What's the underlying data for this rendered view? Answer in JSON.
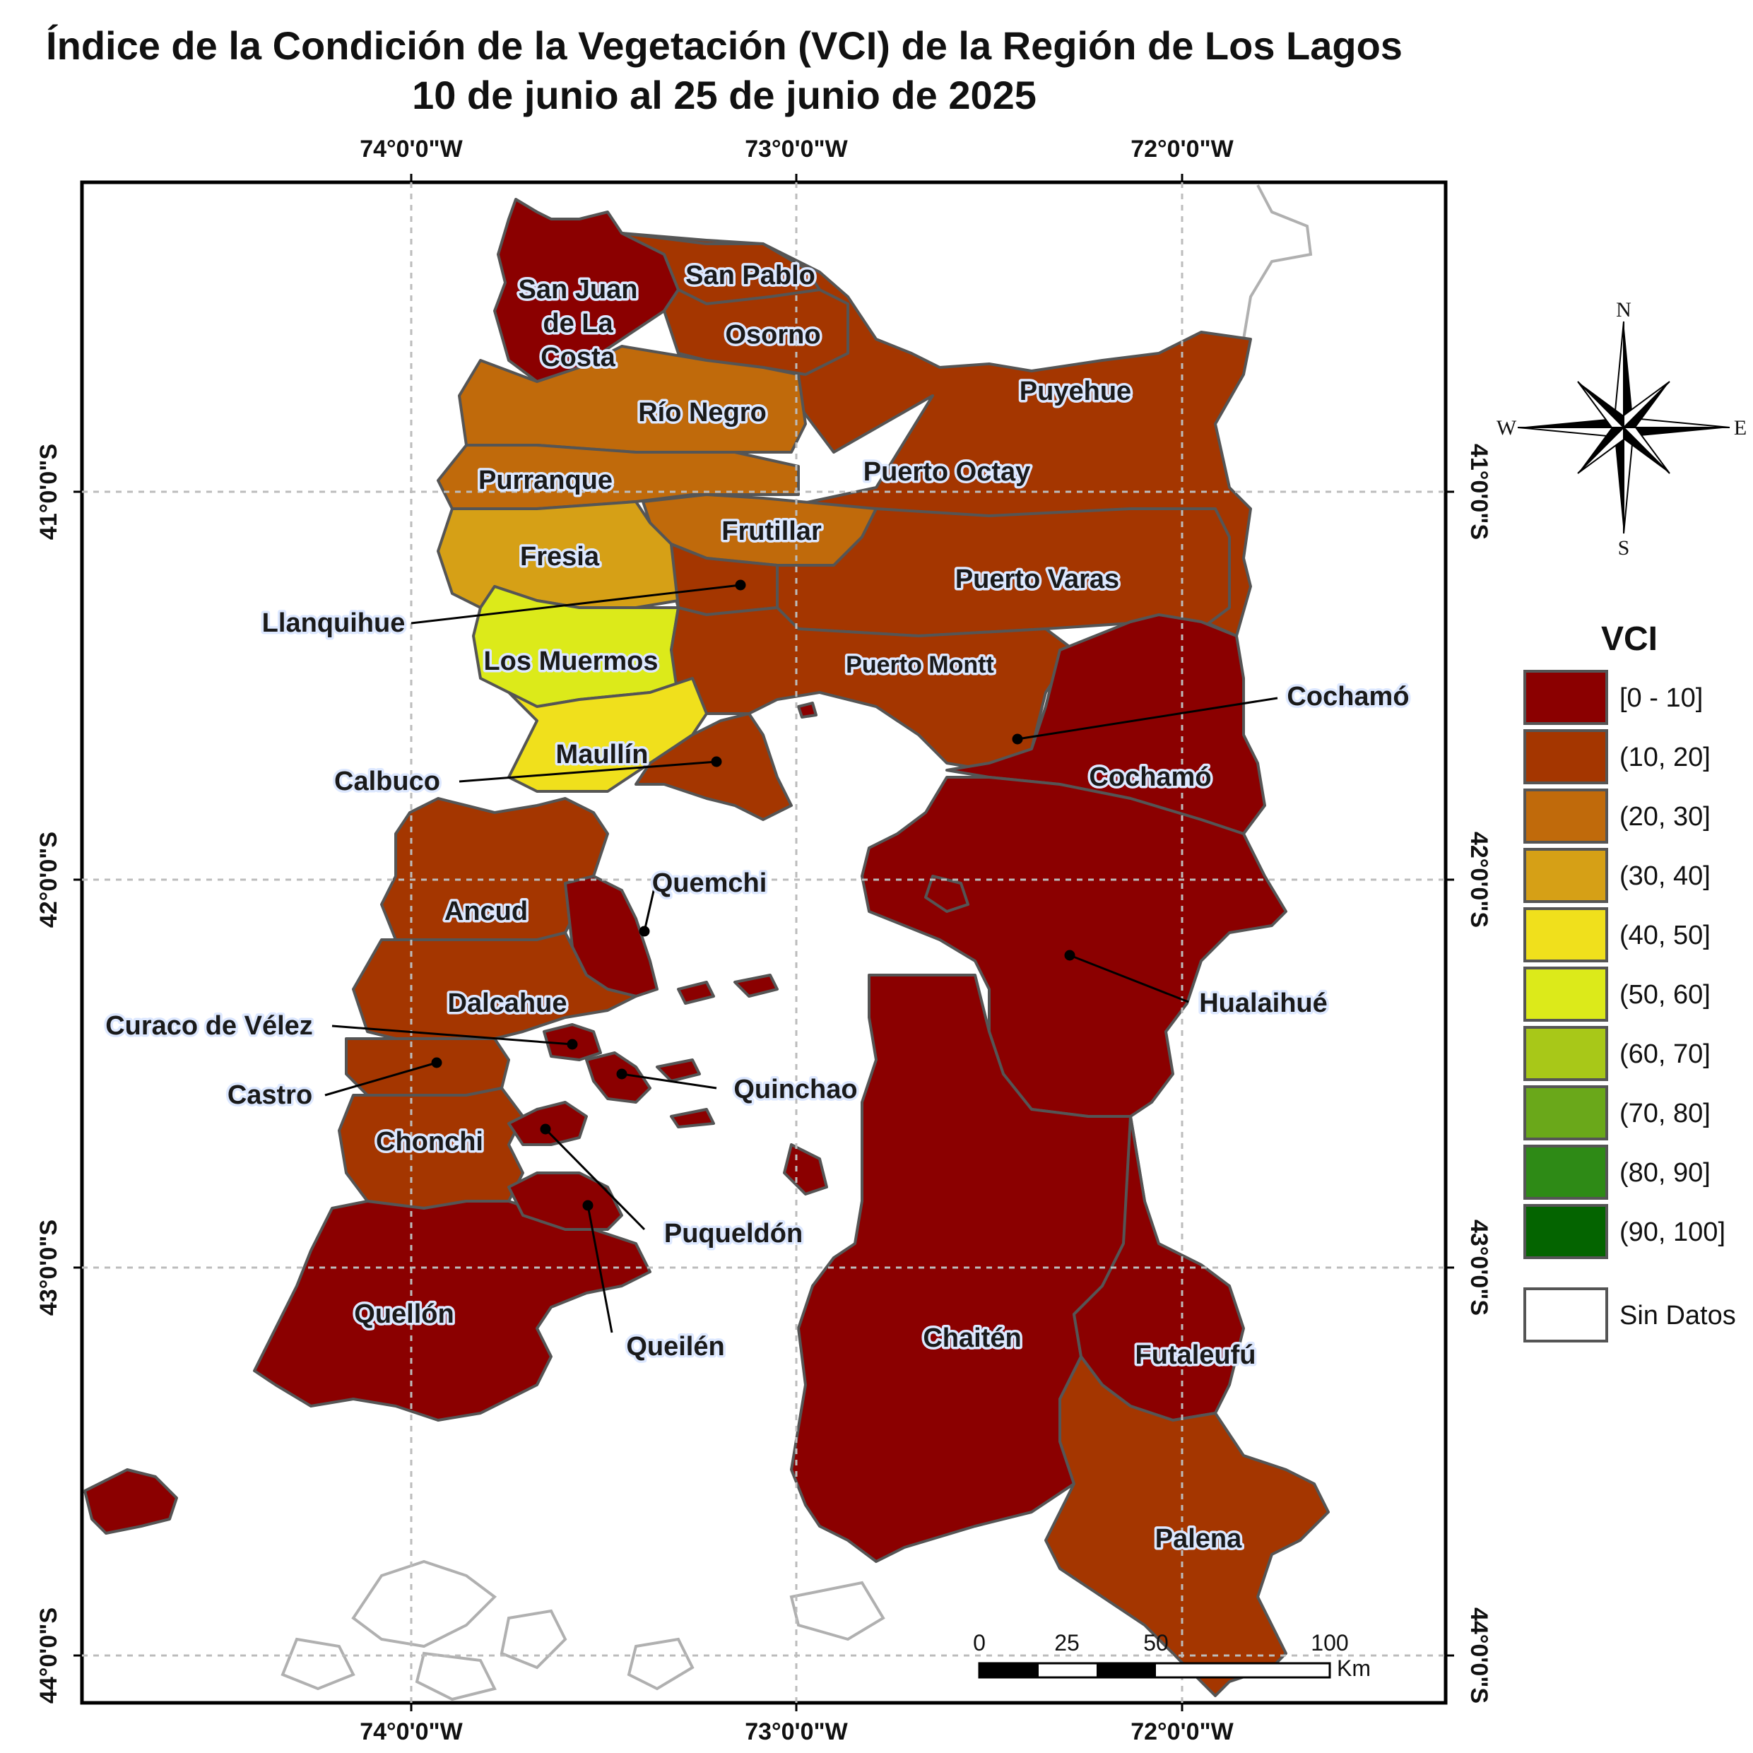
{
  "title": {
    "line1": "Índice de la Condición de la Vegetación (VCI) de la Región de Los Lagos",
    "line2": "10 de junio al 25 de junio de 2025"
  },
  "axes": {
    "lon_top": [
      "74°0'0\"W",
      "73°0'0\"W",
      "72°0'0\"W"
    ],
    "lon_bottom": [
      "74°0'0\"W",
      "73°0'0\"W",
      "72°0'0\"W"
    ],
    "lat_left": [
      "41°0'0\"S",
      "42°0'0\"S",
      "43°0'0\"S",
      "44°0'0\"S"
    ],
    "lat_right": [
      "41°0'0\"S",
      "42°0'0\"S",
      "43°0'0\"S",
      "44°0'0\"S"
    ]
  },
  "colors": {
    "class_0_10": "#8b0000",
    "class_10_20": "#a43600",
    "class_20_30": "#c06a0b",
    "class_30_40": "#d6a016",
    "class_40_50": "#f0e01c",
    "class_50_60": "#dcea1a",
    "class_60_70": "#a8c818",
    "class_70_80": "#6aa81a",
    "class_80_90": "#2e8a16",
    "class_90_100": "#046400",
    "sin_datos": "#ffffff",
    "border": "#555555",
    "outside_outline": "#b0b0b0"
  },
  "legend": {
    "title": "VCI",
    "items": [
      {
        "label": "[0 - 10]",
        "color": "#8b0000"
      },
      {
        "label": "(10, 20]",
        "color": "#a43600"
      },
      {
        "label": "(20, 30]",
        "color": "#c06a0b"
      },
      {
        "label": "(30, 40]",
        "color": "#d6a016"
      },
      {
        "label": "(40, 50]",
        "color": "#f0e01c"
      },
      {
        "label": "(50, 60]",
        "color": "#dcea1a"
      },
      {
        "label": "(60, 70]",
        "color": "#a8c818"
      },
      {
        "label": "(70, 80]",
        "color": "#6aa81a"
      },
      {
        "label": "(80, 90]",
        "color": "#2e8a16"
      },
      {
        "label": "(90, 100]",
        "color": "#046400"
      }
    ],
    "no_data_label": "Sin Datos"
  },
  "compass": {
    "n": "N",
    "s": "S",
    "e": "E",
    "w": "W"
  },
  "scale_bar": {
    "ticks": [
      "0",
      "25",
      "50",
      "100"
    ],
    "unit": "Km"
  },
  "municipalities": {
    "san_juan_line1": "San Juan",
    "san_juan_line2": "de La",
    "san_juan_line3": "Costa",
    "san_pablo": "San Pablo",
    "osorno": "Osorno",
    "rio_negro": "Río Negro",
    "puyehue": "Puyehue",
    "purranque": "Purranque",
    "puerto_octay": "Puerto Octay",
    "frutillar": "Frutillar",
    "fresia": "Fresia",
    "puerto_varas": "Puerto Varas",
    "llanquihue": "Llanquihue",
    "los_muermos": "Los Muermos",
    "puerto_montt": "Puerto Montt",
    "cochamo_callout": "Cochamó",
    "cochamo": "Cochamó",
    "maullin": "Maullín",
    "calbuco": "Calbuco",
    "quemchi": "Quemchi",
    "ancud": "Ancud",
    "hualaihue": "Hualaihué",
    "dalcahue": "Dalcahue",
    "curaco": "Curaco de Vélez",
    "castro": "Castro",
    "quinchao": "Quinchao",
    "chonchi": "Chonchi",
    "puqueldon": "Puqueldón",
    "queilen": "Queilén",
    "quellon": "Quellón",
    "chaiten": "Chaitén",
    "futaleufu": "Futaleufú",
    "palena": "Palena"
  }
}
